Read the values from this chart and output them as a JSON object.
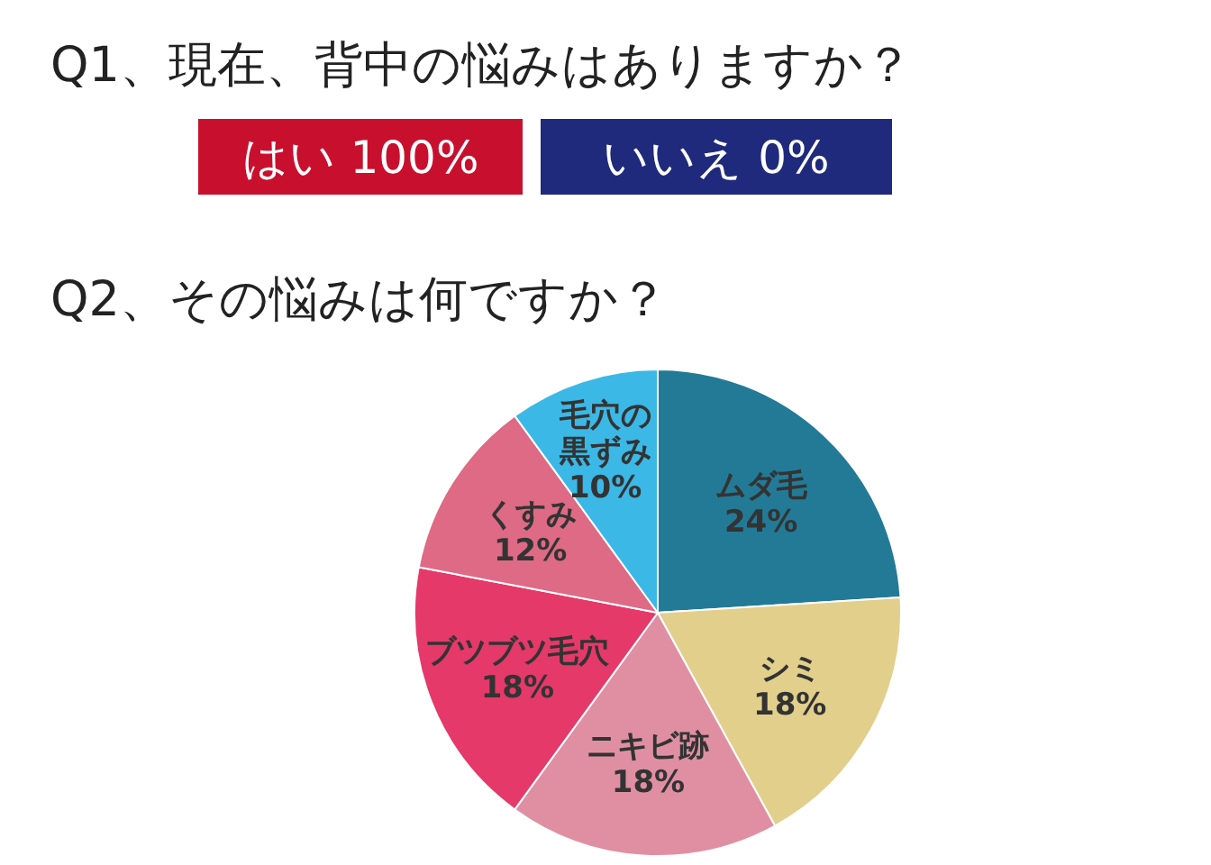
{
  "chart_data": [
    {
      "type": "other",
      "title": "Q1、現在、背中の悩みはありますか？",
      "categories": [
        "はい 100%",
        "いいえ 0%"
      ],
      "colors": [
        "#c8102e",
        "#1f2a7c"
      ]
    },
    {
      "type": "pie",
      "title": "Q2、その悩みは何ですか？",
      "categories": [
        "ムダ毛",
        "シミ",
        "ニキビ跡",
        "ブツブツ毛穴",
        "くすみ",
        "毛穴の黒ずみ"
      ],
      "values": [
        24,
        18,
        18,
        18,
        12,
        10
      ],
      "colors": [
        "#237a96",
        "#e2cf8c",
        "#e08fa3",
        "#e5396a",
        "#de6a85",
        "#3bb8e6"
      ],
      "value_labels": [
        "24%",
        "18%",
        "18%",
        "18%",
        "12%",
        "10%"
      ]
    }
  ]
}
